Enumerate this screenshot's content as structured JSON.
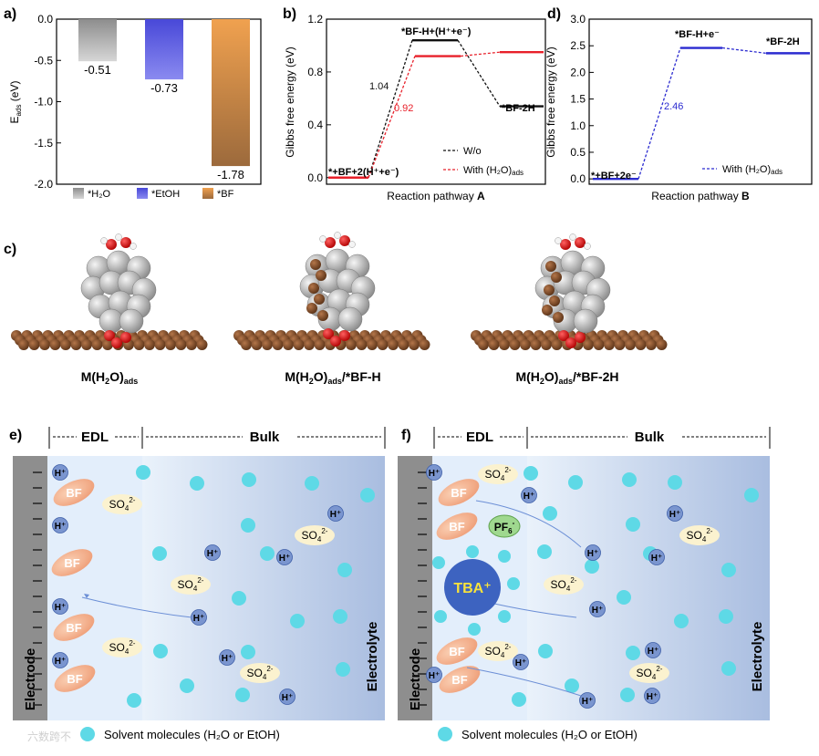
{
  "panel_letters": {
    "a": "a)",
    "b": "b)",
    "c": "c)",
    "d": "d)",
    "e": "e)",
    "f": "f)"
  },
  "chart_data": [
    {
      "id": "a",
      "type": "bar",
      "ylabel_main": "E",
      "ylabel_sub": "ads",
      "ylabel_unit": " (eV)",
      "ylim": [
        -2.0,
        0.0
      ],
      "yticks": [
        "0.0",
        "-0.5",
        "-1.0",
        "-1.5",
        "-2.0"
      ],
      "ytick_values": [
        0.0,
        -0.5,
        -1.0,
        -1.5,
        -2.0
      ],
      "categories": [
        "*H2O",
        "*EtOH",
        "*BF"
      ],
      "legend": [
        "*H₂O",
        "*EtOH",
        "*BF"
      ],
      "values": [
        -0.51,
        -0.73,
        -1.78
      ],
      "value_labels": [
        "-0.51",
        "-0.73",
        "-1.78"
      ],
      "colors": [
        "#a9a9a9",
        "#6c6ce4",
        "#d9924a"
      ]
    },
    {
      "id": "b",
      "type": "line",
      "ylabel": "Gibbs free energy (eV)",
      "xlabel": "Reaction pathway ",
      "xlabel_bold": "A",
      "ylim": [
        -0.05,
        1.2
      ],
      "yticks": [
        "0.0",
        "0.4",
        "0.8",
        "1.2"
      ],
      "ytick_values": [
        0.0,
        0.4,
        0.8,
        1.2
      ],
      "states": [
        "*+BF+2(H⁺+e⁻)",
        "*BF-H+(H⁺+e⁻)",
        "*BF-2H"
      ],
      "series": [
        {
          "name": "W/o",
          "values": [
            0.0,
            1.04,
            0.54
          ],
          "color": "#111111"
        },
        {
          "name": "With (H₂O)ads",
          "values": [
            0.0,
            0.92,
            0.95
          ],
          "color": "#e8202a"
        }
      ],
      "annotations": [
        "1.04",
        "0.92"
      ],
      "legend": [
        "W/o",
        "With (H₂O)",
        "ads"
      ]
    },
    {
      "id": "d",
      "type": "line",
      "ylabel": "Gibbs free energy (eV)",
      "xlabel": "Reaction pathway ",
      "xlabel_bold": "B",
      "ylim": [
        -0.1,
        3.0
      ],
      "yticks": [
        "0.0",
        "0.5",
        "1.0",
        "1.5",
        "2.0",
        "2.5",
        "3.0"
      ],
      "ytick_values": [
        0.0,
        0.5,
        1.0,
        1.5,
        2.0,
        2.5,
        3.0
      ],
      "states": [
        "*+BF+2e⁻",
        "*BF-H+e⁻",
        "*BF-2H"
      ],
      "series": [
        {
          "name": "With (H₂O)ads",
          "values": [
            0.0,
            2.46,
            2.36
          ],
          "color": "#2b2bd0"
        }
      ],
      "annotations": [
        "2.46"
      ],
      "legend": [
        "With (H₂O)",
        "ads"
      ]
    }
  ],
  "panel_c": {
    "labels": [
      {
        "main": "M(H",
        "sub1": "2",
        "mid": "O)",
        "sub2": "ads",
        "tail": ""
      },
      {
        "main": "M(H",
        "sub1": "2",
        "mid": "O)",
        "sub2": "ads",
        "tail": "/*BF-H"
      },
      {
        "main": "M(H",
        "sub1": "2",
        "mid": "O)",
        "sub2": "ads",
        "tail": "/*BF-2H"
      }
    ]
  },
  "panel_e": {
    "edl": "EDL",
    "bulk": "Bulk",
    "electrode": "Electrode",
    "electrolyte": "Electrolyte",
    "bf": "BF",
    "hplus": "H⁺",
    "so4": "SO",
    "legend": "Solvent molecules (H₂O or EtOH)"
  },
  "panel_f": {
    "edl": "EDL",
    "bulk": "Bulk",
    "electrode": "Electrode",
    "electrolyte": "Electrolyte",
    "bf": "BF",
    "hplus": "H⁺",
    "so4": "SO",
    "pf6": "PF",
    "tba": "TBA⁺",
    "legend": "Solvent molecules (H₂O or EtOH)"
  },
  "watermark": "六数跨不"
}
